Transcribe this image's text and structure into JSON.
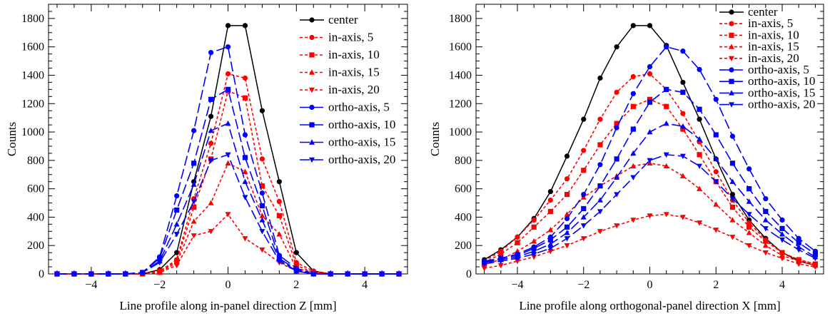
{
  "chart_data": [
    {
      "type": "line",
      "title": "",
      "xlabel": "Line profile along in-panel direction Z [mm]",
      "ylabel": "Counts",
      "xlim": [
        -5.25,
        5.25
      ],
      "ylim": [
        0,
        1900
      ],
      "x_ticks": [
        -4,
        -2,
        0,
        2,
        4
      ],
      "y_ticks": [
        0,
        200,
        400,
        600,
        800,
        1000,
        1200,
        1400,
        1600,
        1800
      ],
      "grid": false,
      "legend_position": "right",
      "x": [
        -5,
        -4.5,
        -4,
        -3.5,
        -3,
        -2.5,
        -2,
        -1.5,
        -1,
        -0.5,
        0,
        0.5,
        1,
        1.5,
        2,
        2.5,
        3,
        3.5,
        4,
        4.5,
        5
      ],
      "series": [
        {
          "name": "center",
          "color": "#000000",
          "dash": "solid",
          "marker": "circle",
          "values": [
            0,
            0,
            0,
            0,
            0,
            0,
            30,
            150,
            650,
            1110,
            1750,
            1750,
            1150,
            650,
            150,
            20,
            0,
            0,
            0,
            0,
            0
          ]
        },
        {
          "name": "in-axis, 5",
          "color": "#ff0000",
          "dash": "short",
          "marker": "circle",
          "values": [
            0,
            0,
            0,
            0,
            0,
            0,
            20,
            100,
            530,
            920,
            1410,
            1380,
            810,
            510,
            80,
            20,
            0,
            0,
            0,
            0,
            0
          ]
        },
        {
          "name": "in-axis, 10",
          "color": "#ff0000",
          "dash": "short",
          "marker": "square",
          "values": [
            0,
            0,
            0,
            0,
            0,
            0,
            20,
            90,
            470,
            810,
            1290,
            1240,
            620,
            410,
            60,
            10,
            0,
            0,
            0,
            0,
            0
          ]
        },
        {
          "name": "in-axis, 15",
          "color": "#ff0000",
          "dash": "short",
          "marker": "triangle-up",
          "values": [
            0,
            0,
            0,
            0,
            0,
            0,
            10,
            80,
            370,
            500,
            780,
            720,
            410,
            280,
            40,
            10,
            0,
            0,
            0,
            0,
            0
          ]
        },
        {
          "name": "in-axis, 20",
          "color": "#ff0000",
          "dash": "short",
          "marker": "triangle-down",
          "values": [
            0,
            0,
            0,
            0,
            0,
            0,
            10,
            60,
            270,
            300,
            420,
            250,
            170,
            80,
            20,
            0,
            0,
            0,
            0,
            0,
            0
          ]
        },
        {
          "name": "ortho-axis, 5",
          "color": "#0000ff",
          "dash": "long",
          "marker": "circle",
          "values": [
            0,
            0,
            0,
            0,
            0,
            10,
            120,
            550,
            1010,
            1560,
            1600,
            980,
            570,
            130,
            40,
            0,
            0,
            0,
            0,
            0,
            0
          ]
        },
        {
          "name": "ortho-axis, 10",
          "color": "#0000ff",
          "dash": "long",
          "marker": "square",
          "values": [
            0,
            0,
            0,
            0,
            0,
            10,
            110,
            450,
            780,
            1230,
            1300,
            820,
            480,
            110,
            30,
            0,
            0,
            0,
            0,
            0,
            0
          ]
        },
        {
          "name": "ortho-axis, 15",
          "color": "#0000ff",
          "dash": "long",
          "marker": "triangle-up",
          "values": [
            0,
            0,
            0,
            0,
            0,
            10,
            90,
            350,
            630,
            1010,
            1060,
            650,
            380,
            100,
            20,
            0,
            0,
            0,
            0,
            0,
            0
          ]
        },
        {
          "name": "ortho-axis, 20",
          "color": "#0000ff",
          "dash": "long",
          "marker": "triangle-down",
          "values": [
            0,
            0,
            0,
            0,
            0,
            10,
            80,
            280,
            510,
            800,
            840,
            540,
            300,
            90,
            20,
            0,
            0,
            0,
            0,
            0,
            0
          ]
        }
      ]
    },
    {
      "type": "line",
      "title": "",
      "xlabel": "Line profile along orthogonal-panel direction X [mm]",
      "ylabel": "Counts",
      "xlim": [
        -5.25,
        5.25
      ],
      "ylim": [
        0,
        1900
      ],
      "x_ticks": [
        -4,
        -2,
        0,
        2,
        4
      ],
      "y_ticks": [
        0,
        200,
        400,
        600,
        800,
        1000,
        1200,
        1400,
        1600,
        1800
      ],
      "grid": false,
      "legend_position": "top-right",
      "x": [
        -5,
        -4.5,
        -4,
        -3.5,
        -3,
        -2.5,
        -2,
        -1.5,
        -1,
        -0.5,
        0,
        0.5,
        1,
        1.5,
        2,
        2.5,
        3,
        3.5,
        4,
        4.5,
        5
      ],
      "series": [
        {
          "name": "center",
          "color": "#000000",
          "dash": "solid",
          "marker": "circle",
          "values": [
            100,
            170,
            260,
            390,
            580,
            830,
            1090,
            1380,
            1600,
            1750,
            1750,
            1610,
            1350,
            1090,
            810,
            560,
            380,
            250,
            150,
            90,
            60
          ]
        },
        {
          "name": "in-axis, 5",
          "color": "#ff0000",
          "dash": "short",
          "marker": "circle",
          "values": [
            90,
            160,
            260,
            380,
            520,
            670,
            870,
            1090,
            1280,
            1390,
            1410,
            1300,
            1130,
            930,
            720,
            520,
            360,
            240,
            150,
            100,
            70
          ]
        },
        {
          "name": "in-axis, 10",
          "color": "#ff0000",
          "dash": "short",
          "marker": "square",
          "values": [
            80,
            140,
            220,
            330,
            440,
            560,
            730,
            910,
            1060,
            1180,
            1230,
            1180,
            1020,
            840,
            650,
            470,
            330,
            230,
            150,
            100,
            70
          ]
        },
        {
          "name": "in-axis, 15",
          "color": "#ff0000",
          "dash": "short",
          "marker": "triangle-up",
          "values": [
            70,
            100,
            160,
            230,
            310,
            420,
            540,
            620,
            690,
            760,
            780,
            760,
            690,
            600,
            490,
            380,
            290,
            200,
            130,
            90,
            60
          ]
        },
        {
          "name": "in-axis, 20",
          "color": "#ff0000",
          "dash": "short",
          "marker": "triangle-down",
          "values": [
            40,
            60,
            90,
            120,
            160,
            200,
            250,
            300,
            340,
            380,
            410,
            420,
            400,
            360,
            310,
            260,
            200,
            150,
            110,
            70,
            50
          ]
        },
        {
          "name": "ortho-axis, 5",
          "color": "#0000ff",
          "dash": "long",
          "marker": "circle",
          "values": [
            90,
            110,
            140,
            190,
            260,
            390,
            560,
            770,
            1030,
            1270,
            1460,
            1600,
            1570,
            1440,
            1230,
            970,
            740,
            530,
            380,
            250,
            160
          ]
        },
        {
          "name": "ortho-axis, 10",
          "color": "#0000ff",
          "dash": "long",
          "marker": "square",
          "values": [
            80,
            110,
            130,
            180,
            240,
            330,
            460,
            620,
            810,
            1020,
            1210,
            1300,
            1280,
            1160,
            980,
            780,
            600,
            440,
            320,
            220,
            140
          ]
        },
        {
          "name": "ortho-axis, 15",
          "color": "#0000ff",
          "dash": "long",
          "marker": "triangle-up",
          "values": [
            80,
            100,
            120,
            160,
            210,
            290,
            400,
            520,
            680,
            850,
            1000,
            1060,
            1040,
            950,
            810,
            650,
            510,
            380,
            280,
            190,
            120
          ]
        },
        {
          "name": "ortho-axis, 20",
          "color": "#0000ff",
          "dash": "long",
          "marker": "triangle-down",
          "values": [
            70,
            90,
            110,
            140,
            180,
            250,
            340,
            440,
            560,
            680,
            800,
            840,
            830,
            760,
            650,
            530,
            420,
            320,
            240,
            170,
            110
          ]
        }
      ]
    }
  ]
}
